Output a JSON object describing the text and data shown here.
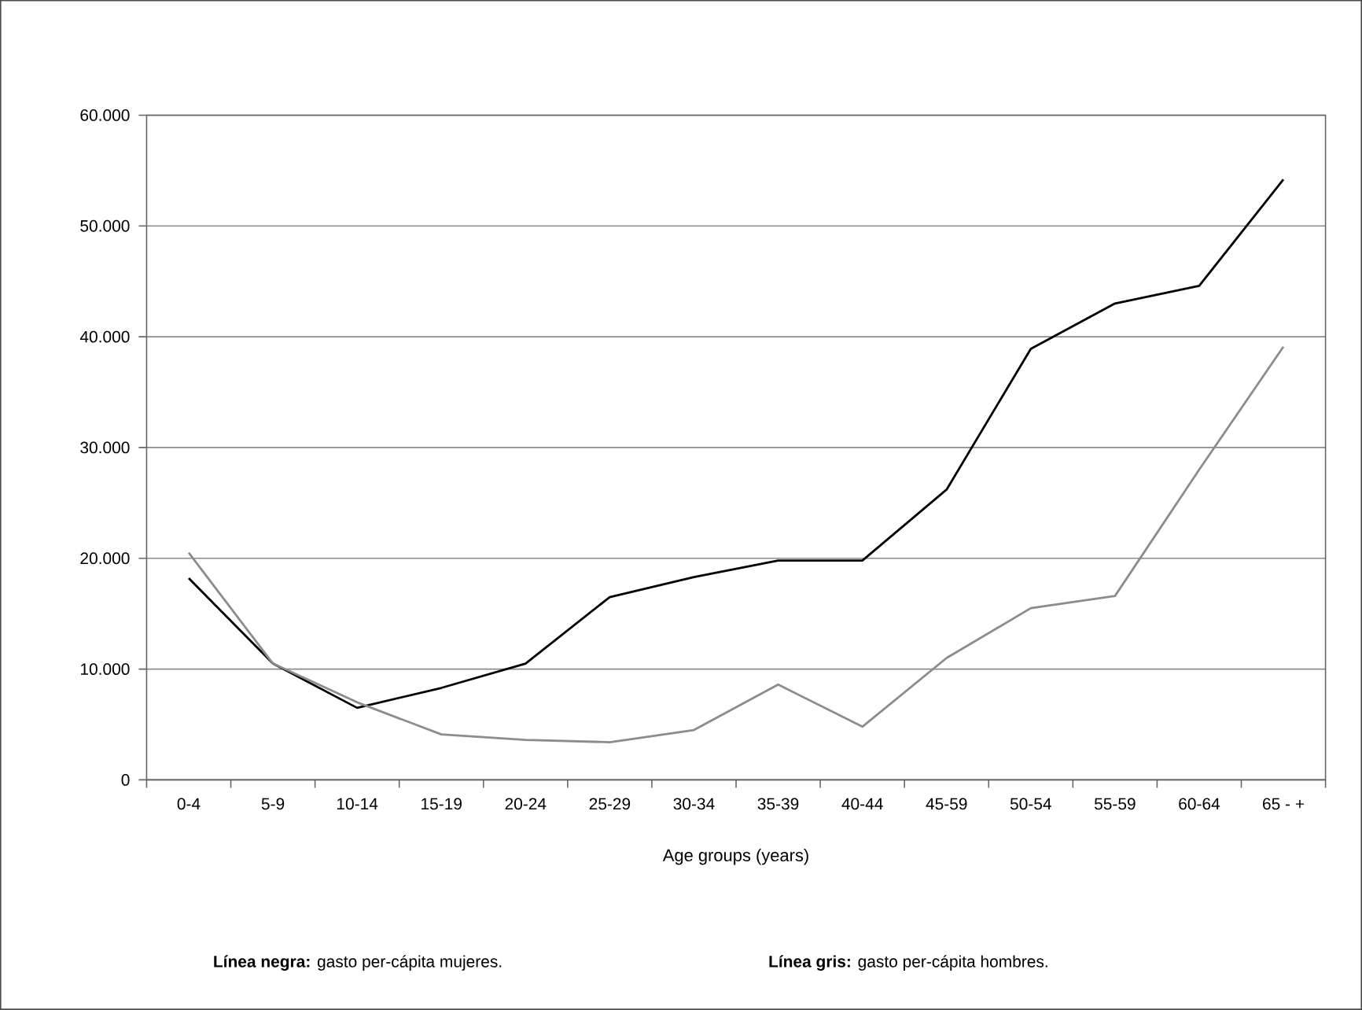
{
  "chart_data": {
    "type": "line",
    "xlabel": "Age groups (years)",
    "categories": [
      "0-4",
      "5-9",
      "10-14",
      "15-19",
      "20-24",
      "25-29",
      "30-34",
      "35-39",
      "40-44",
      "45-59",
      "50-54",
      "55-59",
      "60-64",
      "65 - +"
    ],
    "series": [
      {
        "color": "#000000",
        "values": [
          18200,
          10500,
          6500,
          8300,
          10500,
          16500,
          18300,
          19800,
          19800,
          26200,
          38900,
          43000,
          44600,
          54200
        ]
      },
      {
        "color": "#8c8c8c",
        "values": [
          20500,
          10500,
          7000,
          4100,
          3600,
          3400,
          4500,
          8600,
          4800,
          11000,
          15500,
          16600,
          28000,
          39100
        ]
      }
    ],
    "ylim": [
      0,
      60000
    ],
    "yticks": [
      {
        "value": 0,
        "label": "0"
      },
      {
        "value": 10000,
        "label": "10.000"
      },
      {
        "value": 20000,
        "label": "20.000"
      },
      {
        "value": 30000,
        "label": "30.000"
      },
      {
        "value": 40000,
        "label": "40.000"
      },
      {
        "value": 50000,
        "label": "50.000"
      },
      {
        "value": 60000,
        "label": "60.000"
      }
    ],
    "grid": "y",
    "marker": "none",
    "line_style": "solid",
    "annotations": [
      "**Línea negra:** gasto per-cápita mujeres.",
      "**Línea gris:** gasto per-cápita hombres."
    ]
  }
}
